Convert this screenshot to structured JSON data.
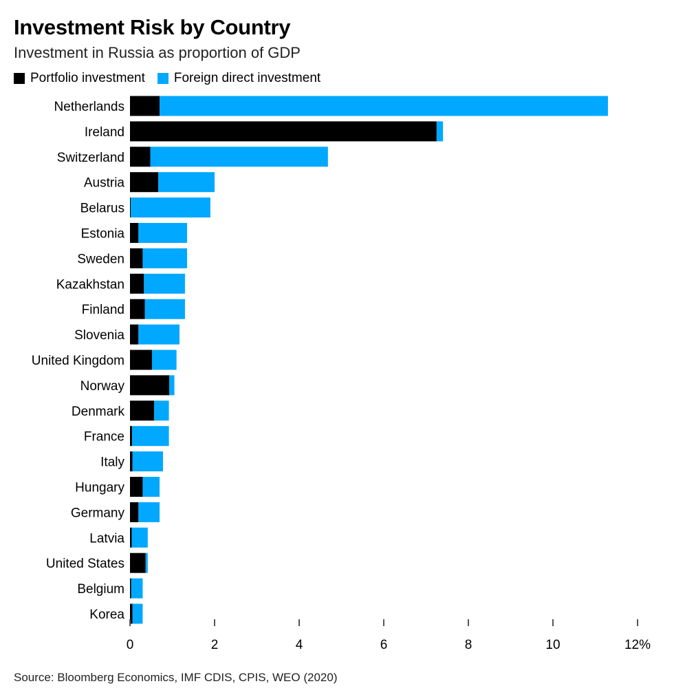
{
  "colors": {
    "portfolio": "#000000",
    "fdi": "#00a8ff",
    "axis": "#555555"
  },
  "chart_data": {
    "type": "bar",
    "orientation": "horizontal",
    "stacked": true,
    "title": "Investment Risk by Country",
    "subtitle": "Investment in Russia as proportion of GDP",
    "categories": [
      "Netherlands",
      "Ireland",
      "Switzerland",
      "Austria",
      "Belarus",
      "Estonia",
      "Sweden",
      "Kazakhstan",
      "Finland",
      "Slovenia",
      "United Kingdom",
      "Norway",
      "Denmark",
      "France",
      "Italy",
      "Hungary",
      "Germany",
      "Latvia",
      "United States",
      "Belgium",
      "Korea"
    ],
    "series": [
      {
        "name": "Portfolio investment",
        "color": "#000000",
        "values": [
          0.7,
          7.25,
          0.48,
          0.67,
          0.02,
          0.2,
          0.3,
          0.33,
          0.35,
          0.2,
          0.52,
          0.93,
          0.57,
          0.05,
          0.06,
          0.3,
          0.2,
          0.04,
          0.37,
          0.03,
          0.06
        ]
      },
      {
        "name": "Foreign direct investment",
        "color": "#00a8ff",
        "values": [
          10.6,
          0.15,
          4.2,
          1.33,
          1.88,
          1.15,
          1.05,
          0.97,
          0.95,
          0.97,
          0.58,
          0.12,
          0.35,
          0.87,
          0.72,
          0.4,
          0.5,
          0.38,
          0.05,
          0.27,
          0.24
        ]
      }
    ],
    "xlim": [
      0,
      12
    ],
    "xticks": [
      0,
      2,
      4,
      6,
      8,
      10,
      12
    ],
    "xtick_labels": [
      "0",
      "2",
      "4",
      "6",
      "8",
      "10",
      "12%"
    ],
    "xlabel": "",
    "ylabel": "",
    "legend_position": "top-left",
    "grid": false
  },
  "source": "Source: Bloomberg Economics, IMF CDIS, CPIS, WEO (2020)"
}
